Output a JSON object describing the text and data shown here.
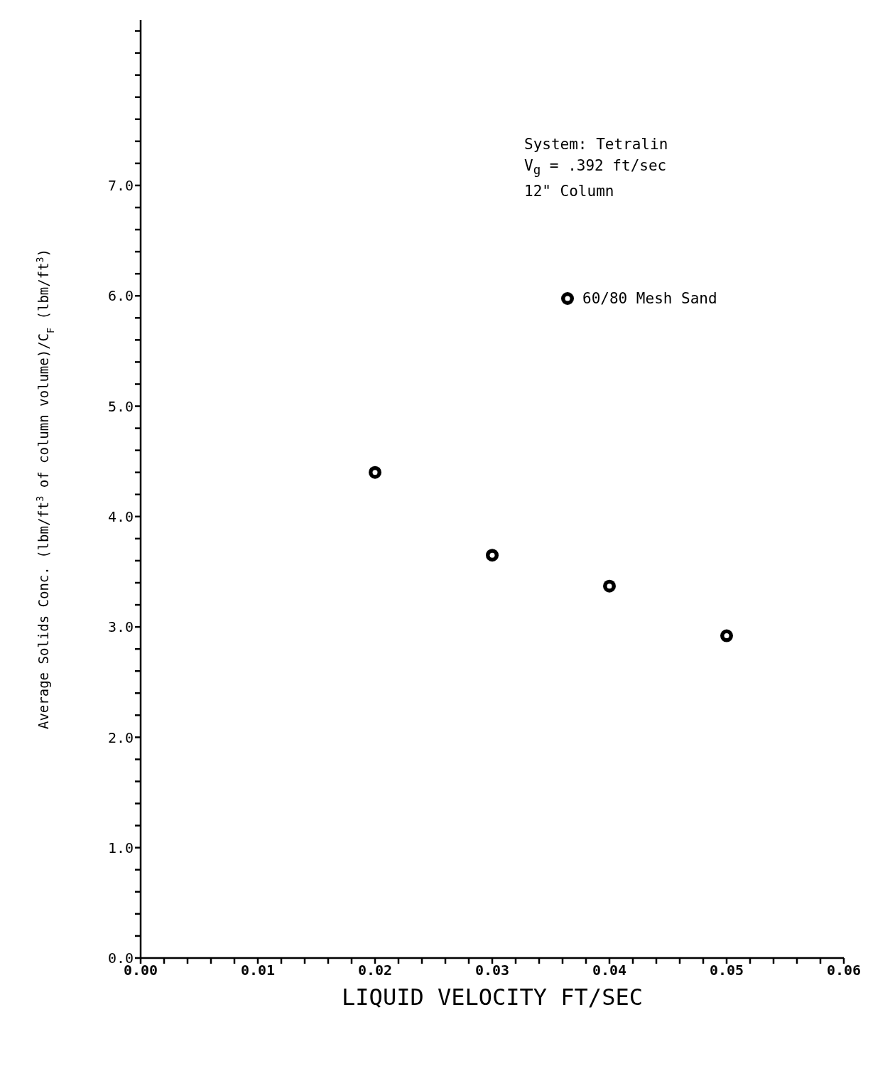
{
  "chart_data": {
    "type": "scatter",
    "xlabel": "LIQUID VELOCITY FT/SEC",
    "ylabel": "Average Solids Conc. (lbm/ft$^{3}$ of column volume)/C$_{F}$ (lbm/ft$^{3}$)",
    "annotations": [
      "System:  Tetralin",
      "V$_{g}$ = .392 ft/sec",
      "12\" Column"
    ],
    "x": [
      0.02,
      0.03,
      0.04,
      0.05
    ],
    "series": [
      {
        "name": "60/80 Mesh Sand",
        "color": "#000000",
        "values": [
          4.4,
          3.65,
          3.37,
          2.92
        ]
      }
    ],
    "xlim": [
      0,
      0.06
    ],
    "xticks": [
      {
        "value": 0,
        "label": "0.00"
      },
      {
        "value": 0.002,
        "label": null
      },
      {
        "value": 0.004,
        "label": null
      },
      {
        "value": 0.006,
        "label": null
      },
      {
        "value": 0.008,
        "label": null
      },
      {
        "value": 0.01,
        "label": "0.01"
      },
      {
        "value": 0.012,
        "label": null
      },
      {
        "value": 0.014,
        "label": null
      },
      {
        "value": 0.016,
        "label": null
      },
      {
        "value": 0.018,
        "label": null
      },
      {
        "value": 0.02,
        "label": "0.02"
      },
      {
        "value": 0.022,
        "label": null
      },
      {
        "value": 0.024,
        "label": null
      },
      {
        "value": 0.026,
        "label": null
      },
      {
        "value": 0.028,
        "label": null
      },
      {
        "value": 0.03,
        "label": "0.03"
      },
      {
        "value": 0.032,
        "label": null
      },
      {
        "value": 0.034,
        "label": null
      },
      {
        "value": 0.036,
        "label": null
      },
      {
        "value": 0.038,
        "label": null
      },
      {
        "value": 0.04,
        "label": "0.04"
      },
      {
        "value": 0.042,
        "label": null
      },
      {
        "value": 0.044,
        "label": null
      },
      {
        "value": 0.046,
        "label": null
      },
      {
        "value": 0.048,
        "label": null
      },
      {
        "value": 0.05,
        "label": "0.05"
      },
      {
        "value": 0.052,
        "label": null
      },
      {
        "value": 0.054,
        "label": null
      },
      {
        "value": 0.056,
        "label": null
      },
      {
        "value": 0.058,
        "label": null
      },
      {
        "value": 0.06,
        "label": "0.06"
      }
    ],
    "ylim": [
      0,
      8.5
    ],
    "yticks": [
      {
        "value": 0,
        "label": "0.0"
      },
      {
        "value": 0.2,
        "label": null
      },
      {
        "value": 0.4,
        "label": null
      },
      {
        "value": 0.6,
        "label": null
      },
      {
        "value": 0.8,
        "label": null
      },
      {
        "value": 1,
        "label": "1.0"
      },
      {
        "value": 1.2,
        "label": null
      },
      {
        "value": 1.4,
        "label": null
      },
      {
        "value": 1.6,
        "label": null
      },
      {
        "value": 1.8,
        "label": null
      },
      {
        "value": 2,
        "label": "2.0"
      },
      {
        "value": 2.2,
        "label": null
      },
      {
        "value": 2.4,
        "label": null
      },
      {
        "value": 2.6,
        "label": null
      },
      {
        "value": 2.8,
        "label": null
      },
      {
        "value": 3,
        "label": "3.0"
      },
      {
        "value": 3.2,
        "label": null
      },
      {
        "value": 3.4,
        "label": null
      },
      {
        "value": 3.6,
        "label": null
      },
      {
        "value": 3.8,
        "label": null
      },
      {
        "value": 4,
        "label": "4.0"
      },
      {
        "value": 4.2,
        "label": null
      },
      {
        "value": 4.4,
        "label": null
      },
      {
        "value": 4.6,
        "label": null
      },
      {
        "value": 4.8,
        "label": null
      },
      {
        "value": 5,
        "label": "5.0"
      },
      {
        "value": 5.2,
        "label": null
      },
      {
        "value": 5.4,
        "label": null
      },
      {
        "value": 5.6,
        "label": null
      },
      {
        "value": 5.8,
        "label": null
      },
      {
        "value": 6,
        "label": "6.0"
      },
      {
        "value": 6.2,
        "label": null
      },
      {
        "value": 6.4,
        "label": null
      },
      {
        "value": 6.6,
        "label": null
      },
      {
        "value": 6.8,
        "label": null
      },
      {
        "value": 7,
        "label": "7.0"
      },
      {
        "value": 7.2,
        "label": null
      },
      {
        "value": 7.4,
        "label": null
      },
      {
        "value": 7.6,
        "label": null
      },
      {
        "value": 7.8,
        "label": null
      },
      {
        "value": 8,
        "label": null
      },
      {
        "value": 8.2,
        "label": null
      },
      {
        "value": 8.4,
        "label": null
      }
    ],
    "grid": false,
    "legend": "top right",
    "marker": "circle"
  }
}
